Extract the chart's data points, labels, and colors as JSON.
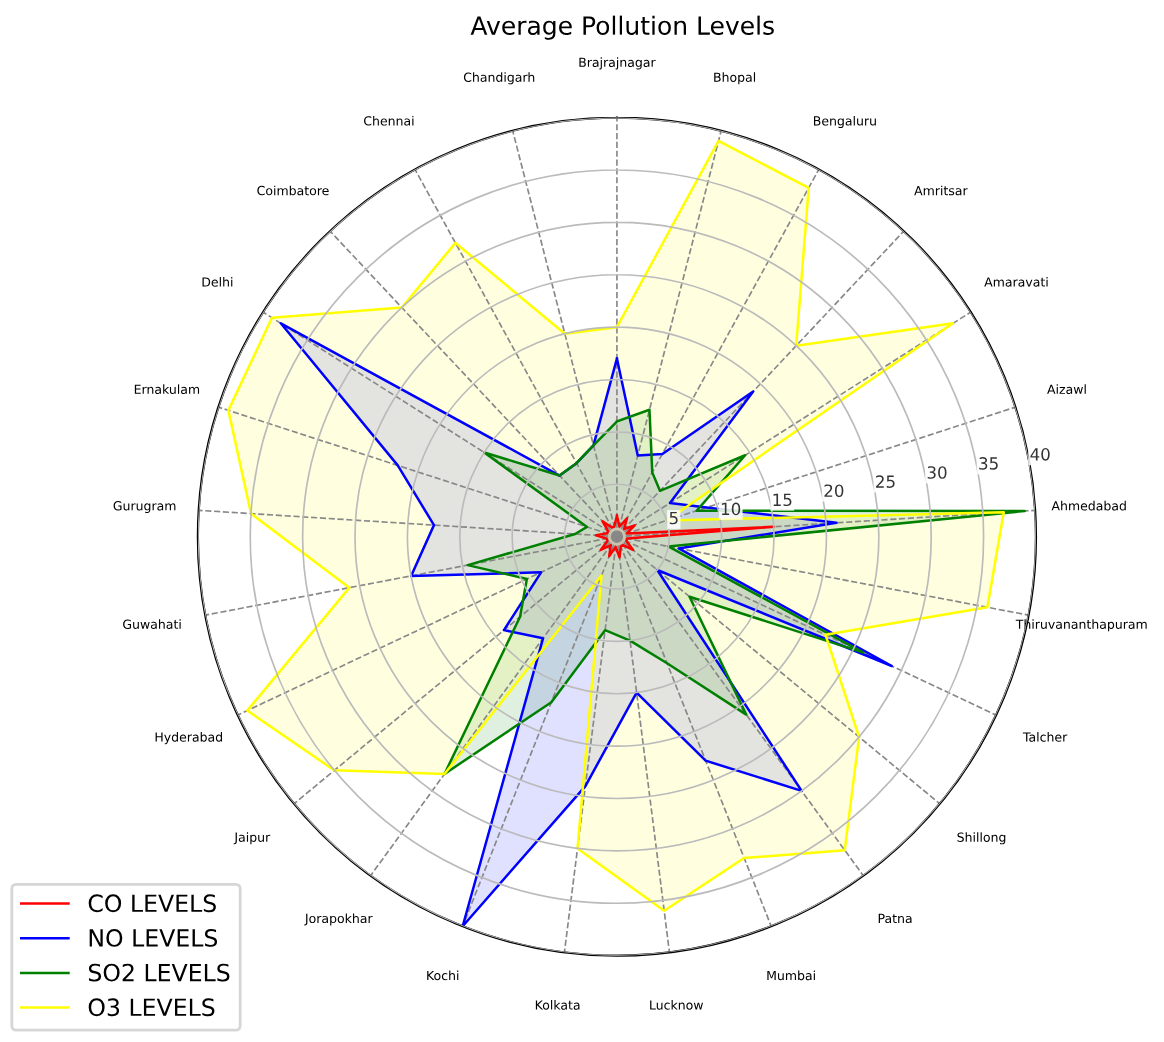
{
  "chart_data": {
    "type": "radar",
    "title": "Average Pollution Levels",
    "categories": [
      "Brajrajnagar",
      "Bhopal",
      "Bengaluru",
      "Amritsar",
      "Amaravati",
      "Aizawl",
      "Ahmedabad",
      "Thiruvananthapuram",
      "Talcher",
      "Shillong",
      "Patna",
      "Mumbai",
      "Lucknow",
      "Kolkata",
      "Kochi",
      "Jorapokhar",
      "Jaipur",
      "Hyderabad",
      "Guwahati",
      "Gurugram",
      "Ernakulam",
      "Delhi",
      "Coimbatore",
      "Chennai",
      "Chandigarh"
    ],
    "ylim": [
      0,
      40
    ],
    "yticks": [
      5,
      10,
      15,
      20,
      25,
      30,
      35,
      40
    ],
    "grid": true,
    "legend": "bottom left",
    "marker": "none",
    "line_style": "solid",
    "series": [
      {
        "name": "CO LEVELS",
        "color": "#ff0000",
        "values": [
          2,
          1,
          2,
          1,
          2,
          1,
          15,
          1,
          1,
          2,
          1,
          1,
          2,
          1,
          2,
          1,
          2,
          1,
          1,
          2,
          1,
          1,
          2,
          1,
          1
        ]
      },
      {
        "name": "NO LEVELS",
        "color": "#0000ff",
        "values": [
          17,
          8,
          9,
          19,
          6,
          9,
          21,
          6,
          29,
          5,
          30,
          23,
          15,
          24,
          40,
          12,
          14,
          8,
          20,
          17.5,
          22,
          38,
          8,
          8,
          9
        ]
      },
      {
        "name": "SO2 LEVELS",
        "color": "#008000",
        "values": [
          11,
          12.5,
          7,
          6,
          14.5,
          8,
          39,
          5,
          26,
          9,
          21,
          13,
          10,
          9,
          17,
          28,
          12,
          9.5,
          14.5,
          4,
          3,
          15,
          8,
          8,
          9
        ]
      },
      {
        "name": "O3 LEVELS",
        "color": "#ffff00",
        "values": [
          20,
          39,
          38,
          25,
          38,
          5,
          37,
          36,
          22,
          30,
          37,
          33,
          36,
          30,
          4,
          28,
          35,
          39,
          26,
          35,
          39,
          39,
          30,
          32,
          20
        ]
      }
    ]
  }
}
